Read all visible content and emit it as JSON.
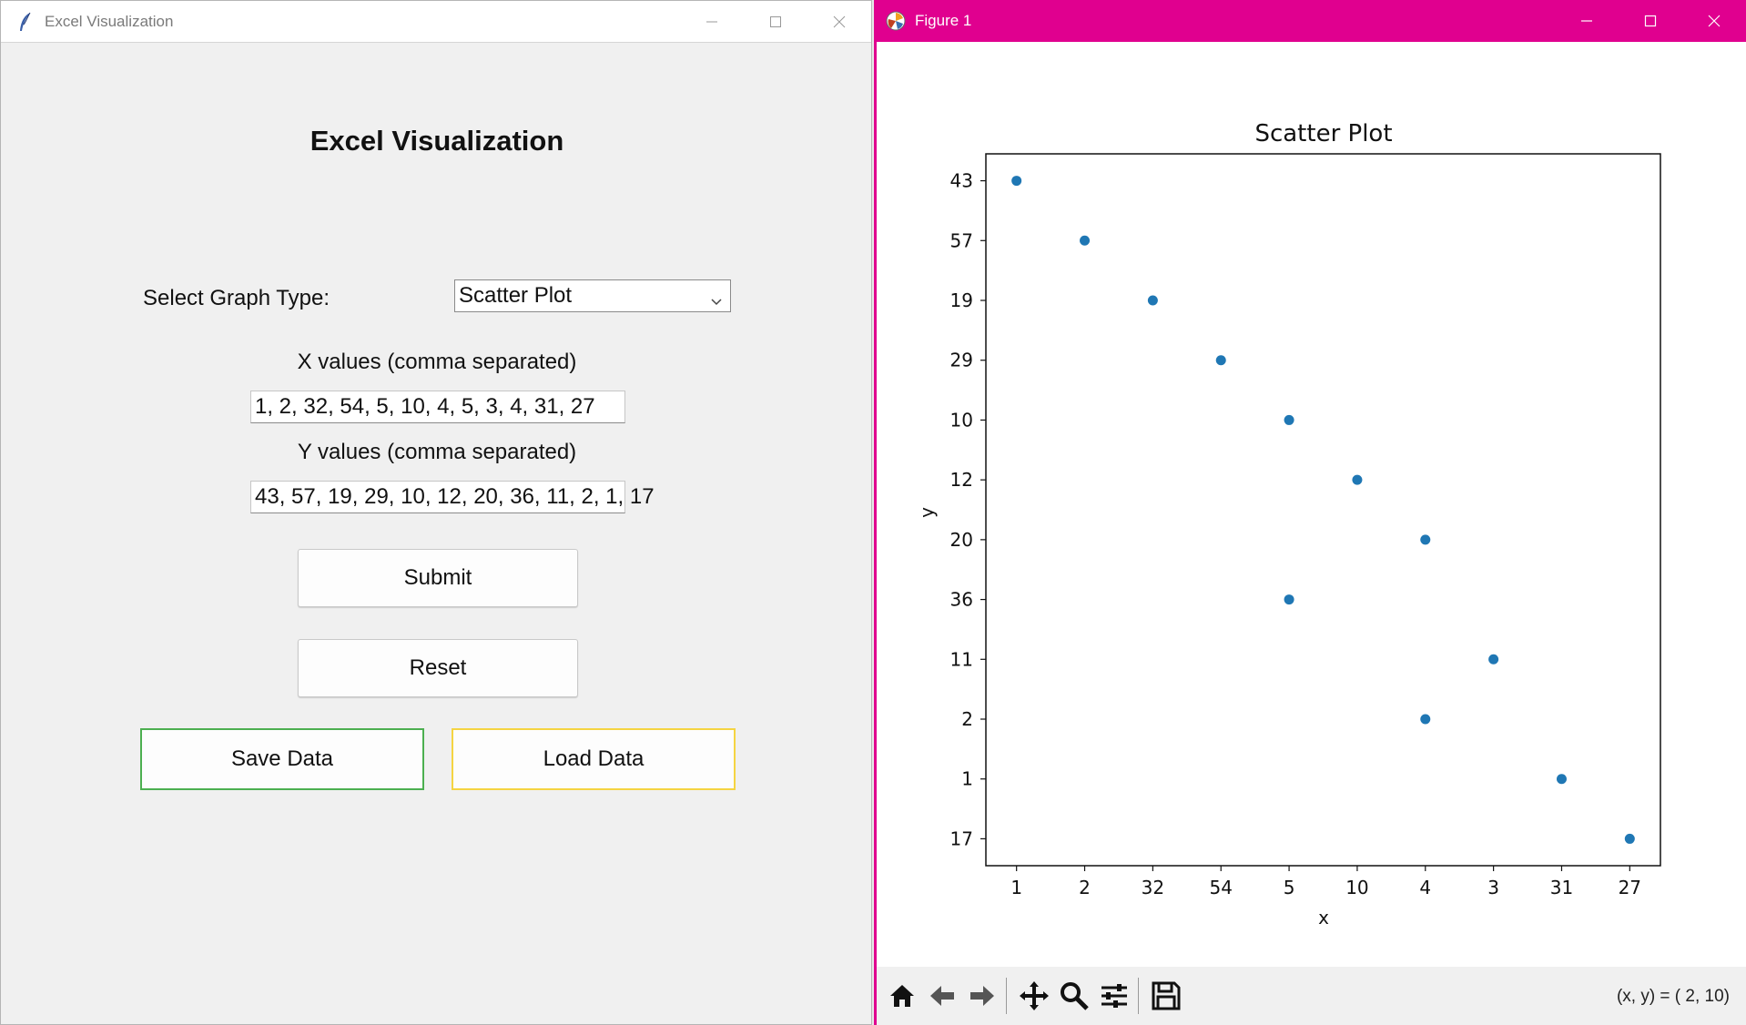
{
  "left_window": {
    "title": "Excel Visualization",
    "heading": "Excel Visualization",
    "graph_type_label": "Select Graph Type:",
    "graph_type_value": "Scatter Plot",
    "x_label": "X values (comma separated)",
    "x_value": "1, 2, 32, 54, 5, 10, 4, 5, 3, 4, 31, 27",
    "y_label": "Y values (comma separated)",
    "y_value": "43, 57, 19, 29, 10, 12, 20, 36, 11, 2, 1, 17",
    "submit_label": "Submit",
    "reset_label": "Reset",
    "save_label": "Save Data",
    "load_label": "Load Data",
    "save_border_color": "#4caf50",
    "load_border_color": "#f5d442",
    "title_icon": "feather-icon"
  },
  "right_window": {
    "title": "Figure 1",
    "title_icon": "matplotlib-icon",
    "accent_color": "#e0008f",
    "toolbar": {
      "icons": [
        "home-icon",
        "back-arrow-icon",
        "forward-arrow-icon",
        "pan-icon",
        "zoom-icon",
        "configure-subplots-icon",
        "save-figure-icon"
      ],
      "coords": "(x, y) = ( 2,  10)"
    }
  },
  "chart_data": {
    "type": "scatter",
    "title": "Scatter Plot",
    "xlabel": "x",
    "ylabel": "y",
    "x_axis_type": "categorical",
    "y_axis_type": "categorical",
    "x_categories": [
      "1",
      "2",
      "32",
      "54",
      "5",
      "10",
      "4",
      "3",
      "31",
      "27"
    ],
    "y_categories": [
      "17",
      "1",
      "2",
      "11",
      "36",
      "20",
      "12",
      "10",
      "29",
      "19",
      "57",
      "43"
    ],
    "x": [
      "1",
      "2",
      "32",
      "54",
      "5",
      "10",
      "4",
      "5",
      "3",
      "4",
      "31",
      "27"
    ],
    "y": [
      "43",
      "57",
      "19",
      "29",
      "10",
      "12",
      "20",
      "36",
      "11",
      "2",
      "1",
      "17"
    ],
    "marker_color": "#1f77b4",
    "grid": false
  }
}
